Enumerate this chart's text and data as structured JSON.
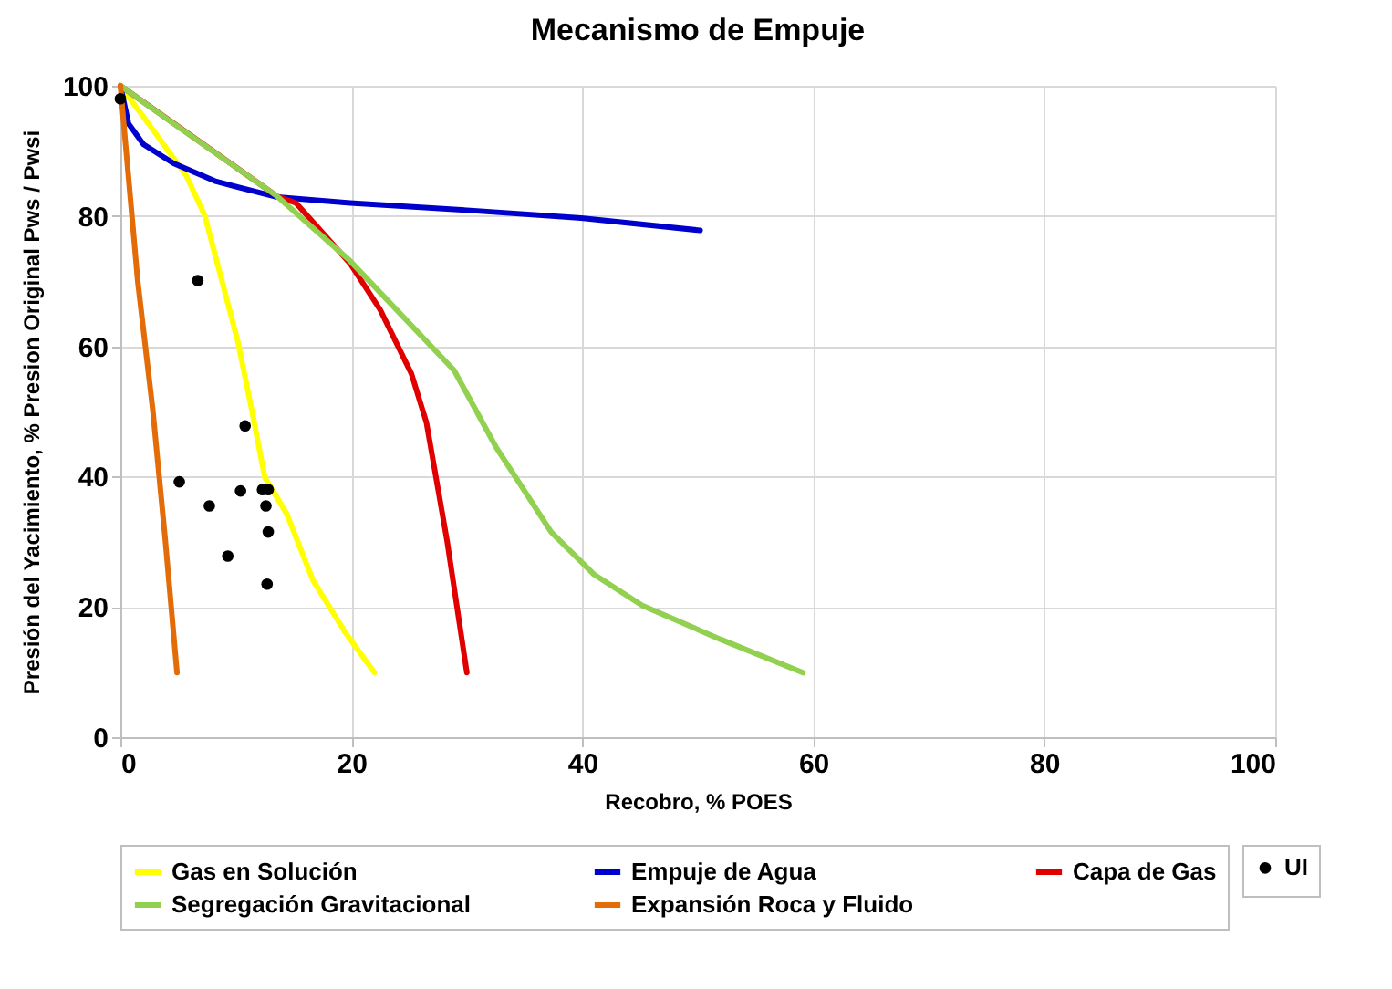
{
  "chart_data": {
    "type": "line",
    "title": "Mecanismo de Empuje",
    "xlabel": "Recobro, % POES",
    "ylabel": "Presión del Yacimiento, % Presion Original Pws / Pwsi",
    "xlim": [
      0,
      100
    ],
    "xticks": [
      0,
      20,
      40,
      60,
      80,
      100
    ],
    "ylim": [
      0,
      100
    ],
    "yticks": [
      0,
      20,
      40,
      60,
      80,
      100
    ],
    "grid": true,
    "legend": "bottom",
    "line_style": "solid",
    "series": [
      {
        "name": "Gas en Solución",
        "color": "#ffff00",
        "x": [
          0,
          2.5,
          5.7,
          7.3,
          8.8,
          10.2,
          11.4,
          12.5,
          14.4,
          16.7,
          19.5,
          22
        ],
        "values": [
          100,
          94,
          86.2,
          80.1,
          70,
          60.5,
          50,
          39.9,
          34.3,
          24,
          16,
          9.9
        ]
      },
      {
        "name": "Empuje de Agua",
        "color": "#0000cc",
        "x": [
          0,
          0.7,
          2,
          4.6,
          8.3,
          13.6,
          19.9,
          30,
          39.9,
          50.2
        ],
        "values": [
          100,
          94.2,
          91,
          88.1,
          85.3,
          82.9,
          82,
          80.9,
          79.7,
          77.8
        ]
      },
      {
        "name": "Capa de Gas",
        "color": "#e00000",
        "x": [
          0,
          4.6,
          13.6,
          15.2,
          19.9,
          22.5,
          25.2,
          26.5,
          28.3,
          30
        ],
        "values": [
          100,
          null,
          83,
          82,
          72.7,
          65.6,
          55.8,
          48.3,
          30,
          9.9
        ]
      },
      {
        "name": "Segregación Gravitacional",
        "color": "#92d050",
        "x": [
          0,
          4.6,
          13.6,
          19.9,
          28.9,
          32.5,
          37.3,
          41,
          45.2,
          52,
          59.1
        ],
        "values": [
          100,
          94.2,
          83,
          73.1,
          56.3,
          44.6,
          31.5,
          25,
          20.2,
          15,
          9.9
        ]
      },
      {
        "name": "Expansión Roca y Fluido",
        "color": "#e36c09",
        "x": [
          0,
          0.6,
          1.5,
          2.8,
          3.9,
          4.9
        ],
        "values": [
          100,
          88,
          70,
          50.3,
          30,
          9.9
        ]
      },
      {
        "name": "UI",
        "color": "#000000",
        "type": "scatter",
        "marker": "circle",
        "x": [
          0,
          6.7,
          10.8,
          5.1,
          10.4,
          12.3,
          12.8,
          7.7,
          12.6,
          12.8,
          9.3,
          12.7
        ],
        "values": [
          98,
          70.1,
          47.8,
          39.2,
          37.8,
          38,
          38,
          35.5,
          35.5,
          31.5,
          27.8,
          23.5
        ]
      }
    ]
  }
}
